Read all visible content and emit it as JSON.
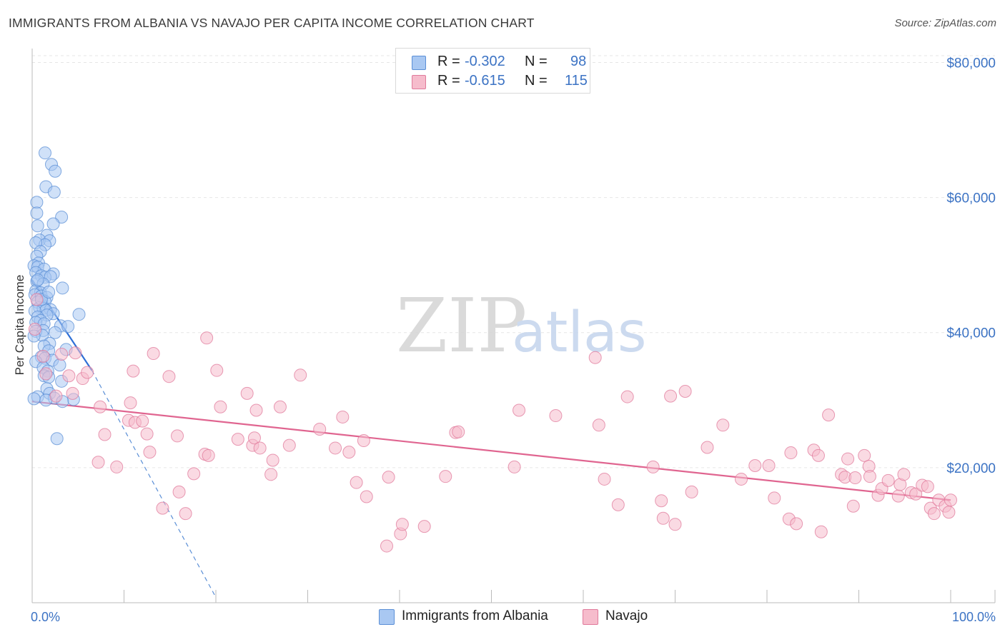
{
  "title": "IMMIGRANTS FROM ALBANIA VS NAVAJO PER CAPITA INCOME CORRELATION CHART",
  "source": "Source: ZipAtlas.com",
  "watermark": {
    "zip": "ZIP",
    "atlas": "atlas"
  },
  "legend": {
    "rows": [
      {
        "r_label": "R =",
        "r_value": "-0.302",
        "n_label": "N =",
        "n_value": "98",
        "color": "#a9c8f2",
        "stroke": "#5b8fd6"
      },
      {
        "r_label": "R =",
        "r_value": "-0.615",
        "n_label": "N =",
        "n_value": "115",
        "color": "#f6bccc",
        "stroke": "#e07a9b"
      }
    ]
  },
  "bottom_legend": [
    {
      "label": "Immigrants from Albania",
      "color": "#a9c8f2",
      "stroke": "#5b8fd6"
    },
    {
      "label": "Navajo",
      "color": "#f6bccc",
      "stroke": "#e07a9b"
    }
  ],
  "chart_data": {
    "type": "scatter",
    "title": "IMMIGRANTS FROM ALBANIA VS NAVAJO PER CAPITA INCOME CORRELATION CHART",
    "xlabel": "",
    "ylabel": "Per Capita Income",
    "xlim": [
      0,
      100
    ],
    "ylim": [
      0,
      81000
    ],
    "x_tick_labels": [
      "0.0%",
      "100.0%"
    ],
    "y_ticks": [
      {
        "value": 20000,
        "label": "$20,000"
      },
      {
        "value": 40000,
        "label": "$40,000"
      },
      {
        "value": 60000,
        "label": "$60,000"
      },
      {
        "value": 80000,
        "label": "$80,000"
      }
    ],
    "grid": true,
    "series": [
      {
        "name": "Immigrants from Albania",
        "color": "#a9c8f2",
        "stroke": "#5b8fd6",
        "trend": {
          "x": [
            0,
            6.5
          ],
          "y": [
            47800,
            34400
          ],
          "color": "#2e6fd6"
        },
        "trend_extension": {
          "x": [
            6.5,
            20
          ],
          "y": [
            34400,
            800
          ],
          "color": "#5b8fd6",
          "dashed": true
        },
        "points": [
          [
            1.4,
            66600
          ],
          [
            2.1,
            64900
          ],
          [
            2.5,
            63900
          ],
          [
            1.5,
            61600
          ],
          [
            2.4,
            60800
          ],
          [
            0.5,
            59300
          ],
          [
            0.5,
            57700
          ],
          [
            3.2,
            57100
          ],
          [
            2.3,
            56100
          ],
          [
            0.6,
            55800
          ],
          [
            1.6,
            54400
          ],
          [
            0.8,
            53700
          ],
          [
            1.9,
            53600
          ],
          [
            1.4,
            53000
          ],
          [
            0.4,
            53300
          ],
          [
            0.9,
            52000
          ],
          [
            0.5,
            51300
          ],
          [
            0.7,
            50300
          ],
          [
            0.2,
            49900
          ],
          [
            0.6,
            49700
          ],
          [
            1.3,
            49400
          ],
          [
            0.4,
            48900
          ],
          [
            2.3,
            48700
          ],
          [
            1.0,
            48400
          ],
          [
            1.4,
            48200
          ],
          [
            2.0,
            48300
          ],
          [
            0.5,
            47600
          ],
          [
            1.2,
            47200
          ],
          [
            3.3,
            46600
          ],
          [
            0.4,
            46200
          ],
          [
            0.9,
            45900
          ],
          [
            0.3,
            45600
          ],
          [
            1.0,
            45400
          ],
          [
            1.6,
            45200
          ],
          [
            1.4,
            44600
          ],
          [
            0.6,
            44500
          ],
          [
            0.8,
            43700
          ],
          [
            1.2,
            43600
          ],
          [
            2.0,
            43400
          ],
          [
            1.5,
            43300
          ],
          [
            0.3,
            43200
          ],
          [
            2.3,
            42800
          ],
          [
            1.6,
            42600
          ],
          [
            0.6,
            42300
          ],
          [
            5.1,
            42700
          ],
          [
            0.9,
            41800
          ],
          [
            0.4,
            41500
          ],
          [
            1.3,
            41300
          ],
          [
            3.1,
            41000
          ],
          [
            3.9,
            40900
          ],
          [
            1.2,
            40300
          ],
          [
            2.5,
            40000
          ],
          [
            0.4,
            40200
          ],
          [
            1.1,
            39600
          ],
          [
            0.2,
            39500
          ],
          [
            1.9,
            38400
          ],
          [
            1.3,
            38000
          ],
          [
            1.8,
            37300
          ],
          [
            3.7,
            37500
          ],
          [
            1.0,
            36400
          ],
          [
            1.4,
            36200
          ],
          [
            2.2,
            35900
          ],
          [
            0.4,
            35700
          ],
          [
            3.0,
            35200
          ],
          [
            1.2,
            34800
          ],
          [
            1.7,
            34300
          ],
          [
            1.3,
            33600
          ],
          [
            1.8,
            33400
          ],
          [
            3.2,
            32800
          ],
          [
            1.6,
            31700
          ],
          [
            1.9,
            31000
          ],
          [
            0.6,
            30500
          ],
          [
            2.4,
            30300
          ],
          [
            1.5,
            30000
          ],
          [
            0.2,
            30200
          ],
          [
            4.5,
            30100
          ],
          [
            3.3,
            29800
          ],
          [
            2.7,
            24300
          ],
          [
            1.0,
            44900
          ],
          [
            0.6,
            47800
          ],
          [
            1.8,
            46000
          ]
        ]
      },
      {
        "name": "Navajo",
        "color": "#f6bccc",
        "stroke": "#e07a9b",
        "trend": {
          "x": [
            0,
            100
          ],
          "y": [
            29800,
            15200
          ],
          "color": "#e06590"
        },
        "points": [
          [
            0.3,
            40500
          ],
          [
            0.5,
            44900
          ],
          [
            3.2,
            36800
          ],
          [
            1.2,
            36500
          ],
          [
            4.7,
            37000
          ],
          [
            5.5,
            33200
          ],
          [
            6.0,
            34100
          ],
          [
            4.0,
            33600
          ],
          [
            4.4,
            31000
          ],
          [
            1.5,
            33900
          ],
          [
            2.6,
            30600
          ],
          [
            7.4,
            29000
          ],
          [
            7.9,
            24900
          ],
          [
            7.2,
            20800
          ],
          [
            9.2,
            20100
          ],
          [
            10.5,
            27000
          ],
          [
            11.2,
            26700
          ],
          [
            11.0,
            34300
          ],
          [
            10.7,
            29600
          ],
          [
            12.0,
            26900
          ],
          [
            12.5,
            25000
          ],
          [
            12.8,
            22300
          ],
          [
            13.2,
            36900
          ],
          [
            14.2,
            14000
          ],
          [
            14.9,
            33500
          ],
          [
            15.8,
            24700
          ],
          [
            16.0,
            16400
          ],
          [
            16.7,
            13200
          ],
          [
            17.6,
            19100
          ],
          [
            18.8,
            22000
          ],
          [
            19.2,
            21800
          ],
          [
            19.0,
            39200
          ],
          [
            20.1,
            34400
          ],
          [
            20.5,
            29000
          ],
          [
            22.4,
            24200
          ],
          [
            23.4,
            31000
          ],
          [
            24.0,
            23300
          ],
          [
            24.2,
            24400
          ],
          [
            24.8,
            22900
          ],
          [
            24.4,
            28500
          ],
          [
            26.0,
            19000
          ],
          [
            26.2,
            21100
          ],
          [
            27.0,
            29000
          ],
          [
            28.0,
            23300
          ],
          [
            29.2,
            33700
          ],
          [
            31.3,
            25700
          ],
          [
            33.0,
            22900
          ],
          [
            33.8,
            27500
          ],
          [
            34.5,
            22300
          ],
          [
            35.3,
            17800
          ],
          [
            36.1,
            24000
          ],
          [
            36.4,
            15700
          ],
          [
            38.6,
            8400
          ],
          [
            38.8,
            18600
          ],
          [
            40.1,
            10200
          ],
          [
            40.3,
            11600
          ],
          [
            42.7,
            11300
          ],
          [
            45.0,
            18700
          ],
          [
            46.1,
            25200
          ],
          [
            46.4,
            25300
          ],
          [
            52.5,
            20100
          ],
          [
            53.0,
            28500
          ],
          [
            57.0,
            27700
          ],
          [
            61.3,
            36300
          ],
          [
            61.7,
            26300
          ],
          [
            62.3,
            18300
          ],
          [
            63.8,
            14500
          ],
          [
            64.8,
            30500
          ],
          [
            67.6,
            20100
          ],
          [
            68.5,
            15100
          ],
          [
            68.7,
            12500
          ],
          [
            69.5,
            30600
          ],
          [
            70.0,
            11600
          ],
          [
            71.1,
            31300
          ],
          [
            71.8,
            16400
          ],
          [
            73.5,
            23000
          ],
          [
            75.2,
            26300
          ],
          [
            77.2,
            18300
          ],
          [
            78.7,
            20300
          ],
          [
            80.2,
            20300
          ],
          [
            80.8,
            15500
          ],
          [
            82.4,
            12400
          ],
          [
            82.6,
            22200
          ],
          [
            83.2,
            11700
          ],
          [
            85.1,
            22600
          ],
          [
            85.6,
            21800
          ],
          [
            85.9,
            10500
          ],
          [
            86.7,
            27800
          ],
          [
            88.1,
            19000
          ],
          [
            88.5,
            18600
          ],
          [
            88.8,
            21300
          ],
          [
            89.4,
            14300
          ],
          [
            89.6,
            18500
          ],
          [
            90.6,
            21800
          ],
          [
            91.1,
            20200
          ],
          [
            91.2,
            18700
          ],
          [
            92.1,
            15900
          ],
          [
            92.5,
            16900
          ],
          [
            93.2,
            18100
          ],
          [
            94.3,
            15800
          ],
          [
            94.5,
            17500
          ],
          [
            94.9,
            19000
          ],
          [
            95.7,
            16300
          ],
          [
            96.2,
            16100
          ],
          [
            96.9,
            17400
          ],
          [
            97.5,
            17200
          ],
          [
            97.8,
            14000
          ],
          [
            98.2,
            13200
          ],
          [
            98.7,
            15200
          ],
          [
            99.4,
            14300
          ],
          [
            99.8,
            13400
          ],
          [
            100.0,
            15200
          ]
        ]
      }
    ]
  }
}
